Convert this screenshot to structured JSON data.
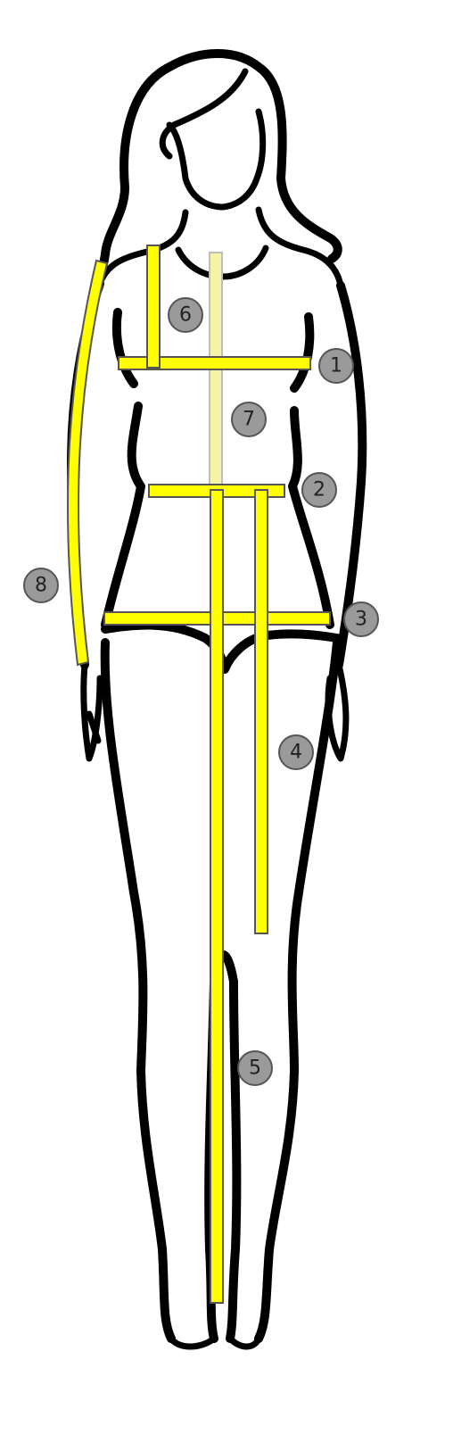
{
  "colors": {
    "tape": "#ffff00",
    "tape_faded": "#f7f3a6",
    "marker_fill": "#9a9a9a",
    "outline": "#000000"
  },
  "markers": [
    {
      "id": "bust",
      "label": "1"
    },
    {
      "id": "waist",
      "label": "2"
    },
    {
      "id": "hip",
      "label": "3"
    },
    {
      "id": "waist-to-knee",
      "label": "4"
    },
    {
      "id": "waist-to-floor",
      "label": "5"
    },
    {
      "id": "shoulder-to-bust",
      "label": "6"
    },
    {
      "id": "neck-to-waist",
      "label": "7"
    },
    {
      "id": "arm-length",
      "label": "8"
    }
  ]
}
